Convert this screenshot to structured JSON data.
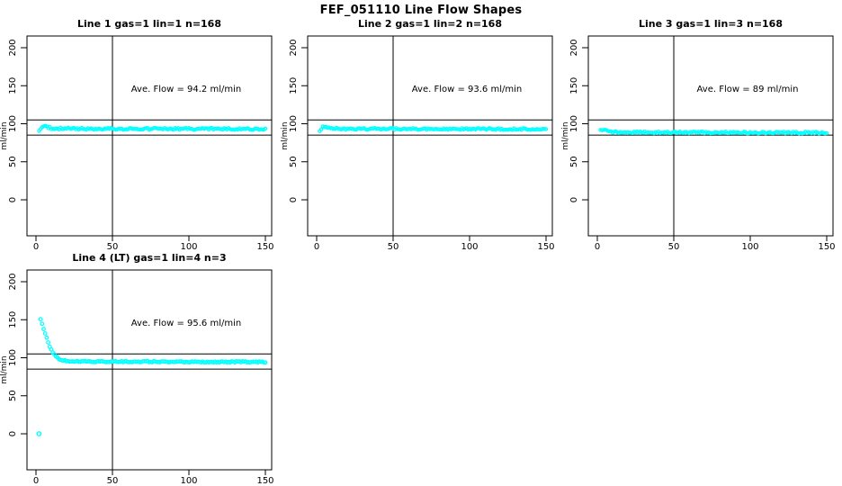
{
  "page_title": "FEF_051110  Line Flow Shapes",
  "colors": {
    "marker": "#00FFFF",
    "axis": "#000000",
    "background": "#FFFFFF",
    "text": "#000000"
  },
  "axes": {
    "ylabel": "ml/min",
    "xticks": [
      0,
      50,
      100,
      150
    ],
    "yticks": [
      0,
      50,
      100,
      150,
      200
    ],
    "xlim": [
      -6,
      154
    ],
    "ylim": [
      -47,
      215
    ],
    "vline_x": 50,
    "hlines": [
      105,
      85
    ],
    "grid": false
  },
  "chart_data": [
    {
      "type": "scatter",
      "title": "Line 1 gas=1 lin=1 n=168",
      "annotation": "Ave. Flow =  94.2  ml/min",
      "ave_flow": 94.2,
      "gas": 1,
      "lin": 1,
      "n": 168,
      "x_range": [
        2,
        150
      ],
      "x_step": 1,
      "profile": [
        [
          2,
          90
        ],
        [
          3,
          93.5
        ],
        [
          4,
          96
        ],
        [
          5,
          96.8
        ],
        [
          7,
          95.5
        ],
        [
          10,
          94.2
        ],
        [
          15,
          93.7
        ],
        [
          30,
          93.5
        ],
        [
          150,
          93.2
        ]
      ],
      "noise": 1.3,
      "marker_r": 1.6,
      "outliers": []
    },
    {
      "type": "scatter",
      "title": "Line 2 gas=1 lin=2 n=168",
      "annotation": "Ave. Flow =  93.6  ml/min",
      "ave_flow": 93.6,
      "gas": 1,
      "lin": 2,
      "n": 168,
      "x_range": [
        2,
        150
      ],
      "x_step": 1,
      "profile": [
        [
          2,
          90
        ],
        [
          3,
          93
        ],
        [
          4,
          95.5
        ],
        [
          6,
          95
        ],
        [
          10,
          93.8
        ],
        [
          20,
          93.3
        ],
        [
          150,
          93.0
        ]
      ],
      "noise": 1.2,
      "marker_r": 1.6,
      "outliers": []
    },
    {
      "type": "scatter",
      "title": "Line 3 gas=1 lin=3 n=168",
      "annotation": "Ave. Flow =  89  ml/min",
      "ave_flow": 89,
      "gas": 1,
      "lin": 3,
      "n": 168,
      "x_range": [
        2,
        150
      ],
      "x_step": 1,
      "profile": [
        [
          2,
          91
        ],
        [
          4,
          92.5
        ],
        [
          6,
          90.5
        ],
        [
          10,
          89.3
        ],
        [
          20,
          88.7
        ],
        [
          150,
          88.3
        ]
      ],
      "noise": 1.2,
      "marker_r": 1.6,
      "outliers": []
    },
    {
      "type": "scatter",
      "title": "Line 4 (LT) gas=1 lin=4 n=3",
      "annotation": "Ave. Flow =  95.6  ml/min",
      "ave_flow": 95.6,
      "gas": 1,
      "lin": 4,
      "n": 3,
      "x_range": [
        3,
        150
      ],
      "x_step": 1,
      "profile": [
        [
          3,
          150
        ],
        [
          5,
          138
        ],
        [
          7,
          126
        ],
        [
          9,
          115
        ],
        [
          11,
          107
        ],
        [
          13,
          101.5
        ],
        [
          15,
          98.5
        ],
        [
          18,
          96.5
        ],
        [
          22,
          95.5
        ],
        [
          30,
          95
        ],
        [
          150,
          94.5
        ]
      ],
      "noise": 0.8,
      "marker_r": 1.8,
      "outliers": [
        [
          2,
          0
        ]
      ]
    }
  ]
}
